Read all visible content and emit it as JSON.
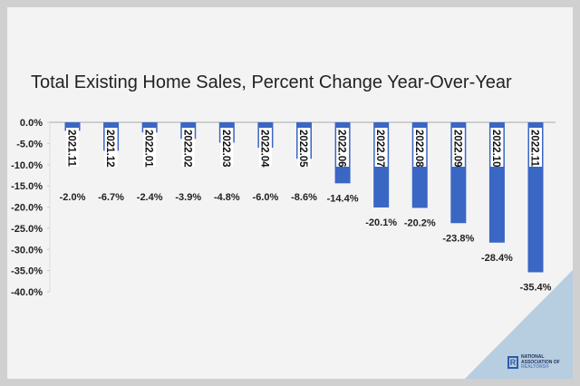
{
  "chart_data": {
    "type": "bar",
    "title": "Total Existing Home Sales, Percent Change Year-Over-Year",
    "categories": [
      "2021.11",
      "2021.12",
      "2022.01",
      "2022.02",
      "2022.03",
      "2022.04",
      "2022.05",
      "2022.06",
      "2022.07",
      "2022.08",
      "2022.09",
      "2022.10",
      "2022.11"
    ],
    "values": [
      -2.0,
      -6.7,
      -2.4,
      -3.9,
      -4.8,
      -6.0,
      -8.6,
      -14.4,
      -20.1,
      -20.2,
      -23.8,
      -28.4,
      -35.4
    ],
    "data_labels": [
      "-2.0%",
      "-6.7%",
      "-2.4%",
      "-3.9%",
      "-4.8%",
      "-6.0%",
      "-8.6%",
      "-14.4%",
      "-20.1%",
      "-20.2%",
      "-23.8%",
      "-28.4%",
      "-35.4%"
    ],
    "yticks": [
      "0.0%",
      "-5.0%",
      "-10.0%",
      "-15.0%",
      "-20.0%",
      "-25.0%",
      "-30.0%",
      "-35.0%",
      "-40.0%"
    ],
    "ylim": [
      -40,
      0
    ],
    "xlabel": "",
    "ylabel": "",
    "grid": false,
    "bar_color": "#3a66c4"
  },
  "logo": {
    "mark": "R",
    "text": [
      "NATIONAL",
      "ASSOCIATION OF",
      "REALTORS®"
    ]
  }
}
